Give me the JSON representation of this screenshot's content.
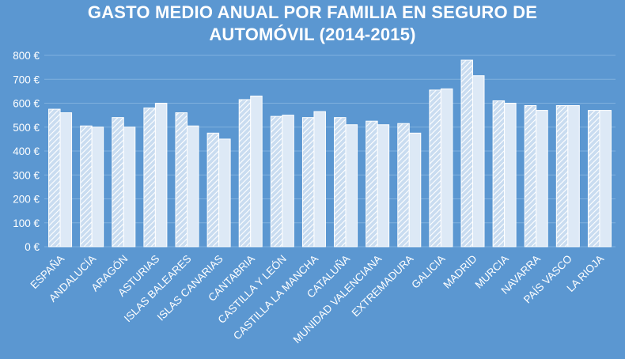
{
  "chart_data": {
    "type": "bar",
    "title_lines": [
      "GASTO MEDIO ANUAL POR FAMILIA EN SEGURO DE",
      "AUTOMÓVIL (2014-2015)"
    ],
    "categories": [
      "ESPAÑA",
      "ANDALUCÍA",
      "ARAGÓN",
      "ASTURIAS",
      "ISLAS BALEARES",
      "ISLAS CANARIAS",
      "CANTABRIA",
      "CASTILLA Y LEÓN",
      "CASTILLA LA MANCHA",
      "CATALUÑA",
      "MUNIDAD VALENCIANA",
      "EXTREMADURA",
      "GALICIA",
      "MADRID",
      "MURCIA",
      "NAVARRA",
      "PAÍS VASCO",
      "LA RIOJA"
    ],
    "series": [
      {
        "pattern": "hatched",
        "values": [
          575,
          505,
          540,
          580,
          560,
          475,
          615,
          545,
          540,
          540,
          525,
          515,
          655,
          780,
          610,
          590,
          590,
          570
        ]
      },
      {
        "pattern": "solid",
        "values": [
          560,
          500,
          500,
          600,
          505,
          450,
          630,
          550,
          565,
          510,
          510,
          475,
          660,
          715,
          600,
          570,
          590,
          570
        ]
      }
    ],
    "y_ticks": [
      "0 €",
      "100 €",
      "200 €",
      "300 €",
      "400 €",
      "500 €",
      "600 €",
      "700 €",
      "800 €"
    ],
    "ylim": [
      0,
      800
    ],
    "grid": true,
    "colors": {
      "background": "#5b97d1",
      "bar_fill": "#dde9f6",
      "bar_stroke": "#ffffff",
      "hatch": "#ffffff",
      "hatch_bg": "#c9dcf0",
      "grid": "#7fb0de",
      "text": "#ffffff"
    }
  }
}
